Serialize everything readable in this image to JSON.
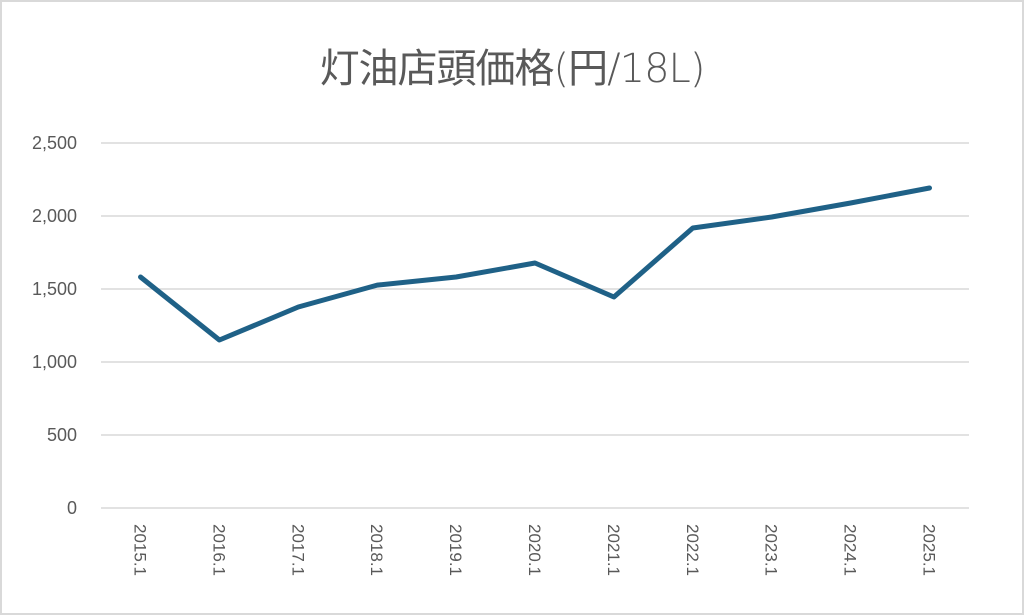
{
  "chart_data": {
    "type": "line",
    "title": "灯油店頭価格(円/18L)",
    "xlabel": "",
    "ylabel": "",
    "categories": [
      "2015.1",
      "2016.1",
      "2017.1",
      "2018.1",
      "2019.1",
      "2020.1",
      "2021.1",
      "2022.1",
      "2023.1",
      "2024.1",
      "2025.1"
    ],
    "series": [
      {
        "name": "灯油店頭価格",
        "color": "#1f6187",
        "values": [
          1582,
          1151,
          1377,
          1527,
          1582,
          1678,
          1445,
          1918,
          1993,
          2089,
          2192
        ]
      }
    ],
    "ylim": [
      0,
      2500
    ],
    "yticks": [
      0,
      500,
      1000,
      1500,
      2000,
      2500
    ],
    "ytick_labels": [
      "0",
      "500",
      "1,000",
      "1,500",
      "2,000",
      "2,500"
    ],
    "grid": true,
    "legend": "none"
  },
  "colors": {
    "line": "#1f6187",
    "grid": "#d9d9d9",
    "text": "#595959",
    "border": "#d9d9d9"
  }
}
